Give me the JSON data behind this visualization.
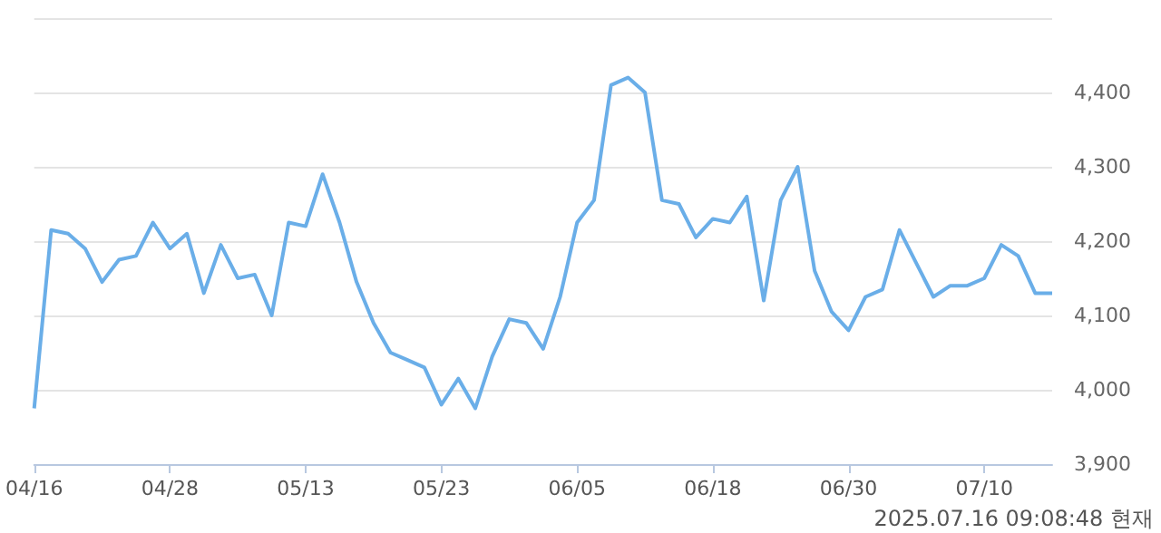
{
  "chart_data": {
    "type": "line",
    "categories": [
      "04/16",
      null,
      null,
      null,
      null,
      null,
      null,
      null,
      "04/28",
      null,
      null,
      null,
      null,
      null,
      null,
      null,
      "05/13",
      null,
      null,
      null,
      null,
      null,
      null,
      null,
      "05/23",
      null,
      null,
      null,
      null,
      null,
      null,
      null,
      "06/05",
      null,
      null,
      null,
      null,
      null,
      null,
      null,
      "06/18",
      null,
      null,
      null,
      null,
      null,
      null,
      null,
      "06/30",
      null,
      null,
      null,
      null,
      null,
      null,
      null,
      "07/10",
      null,
      null,
      null,
      null
    ],
    "series": [
      {
        "color": "#6aaee8",
        "values": [
          3975,
          4215,
          4210,
          4190,
          4145,
          4175,
          4180,
          4225,
          4190,
          4210,
          4130,
          4195,
          4150,
          4155,
          4100,
          4225,
          4220,
          4290,
          4225,
          4145,
          4090,
          4050,
          4040,
          4030,
          3980,
          4015,
          3975,
          4045,
          4095,
          4090,
          4055,
          4125,
          4225,
          4255,
          4410,
          4420,
          4400,
          4255,
          4250,
          4205,
          4230,
          4225,
          4260,
          4120,
          4255,
          4300,
          4160,
          4105,
          4080,
          4125,
          4135,
          4215,
          4170,
          4125,
          4140,
          4140,
          4150,
          4195,
          4180,
          4130,
          4130
        ]
      }
    ],
    "ylim": [
      3900,
      4500
    ],
    "yticks": [
      {
        "value": 3900,
        "label": "3,900"
      },
      {
        "value": 4000,
        "label": "4,000"
      },
      {
        "value": 4100,
        "label": "4,100"
      },
      {
        "value": 4200,
        "label": "4,200"
      },
      {
        "value": 4300,
        "label": "4,300"
      },
      {
        "value": 4400,
        "label": "4,400"
      },
      {
        "value": 4500,
        "label": null
      }
    ],
    "grid": "y",
    "marker": "none",
    "line_style": "solid",
    "annotations": [
      "2025.07.16 09:08:48 현재"
    ]
  }
}
